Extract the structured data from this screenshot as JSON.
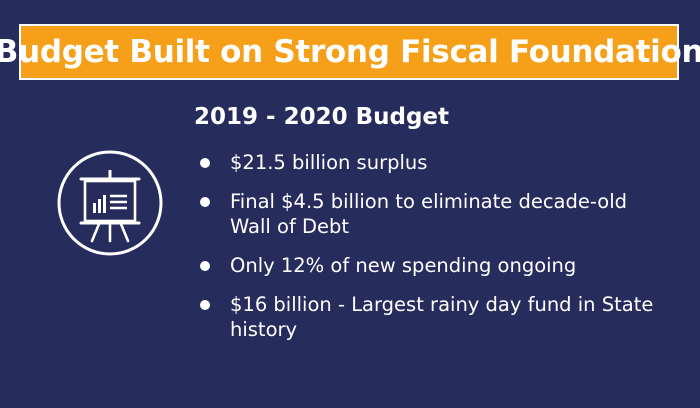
{
  "slide": {
    "title": "Budget Built on Strong Fiscal Foundation",
    "subtitle": "2019 - 2020 Budget",
    "icon": "presentation-board-icon",
    "bullets": [
      "$21.5 billion surplus",
      "Final $4.5 billion to eliminate decade-old Wall of Debt",
      "Only 12% of new spending ongoing",
      "$16 billion - Largest rainy day fund in State history"
    ]
  },
  "colors": {
    "background": "#262c5c",
    "title_bar": "#f6a01a",
    "text": "#ffffff"
  }
}
